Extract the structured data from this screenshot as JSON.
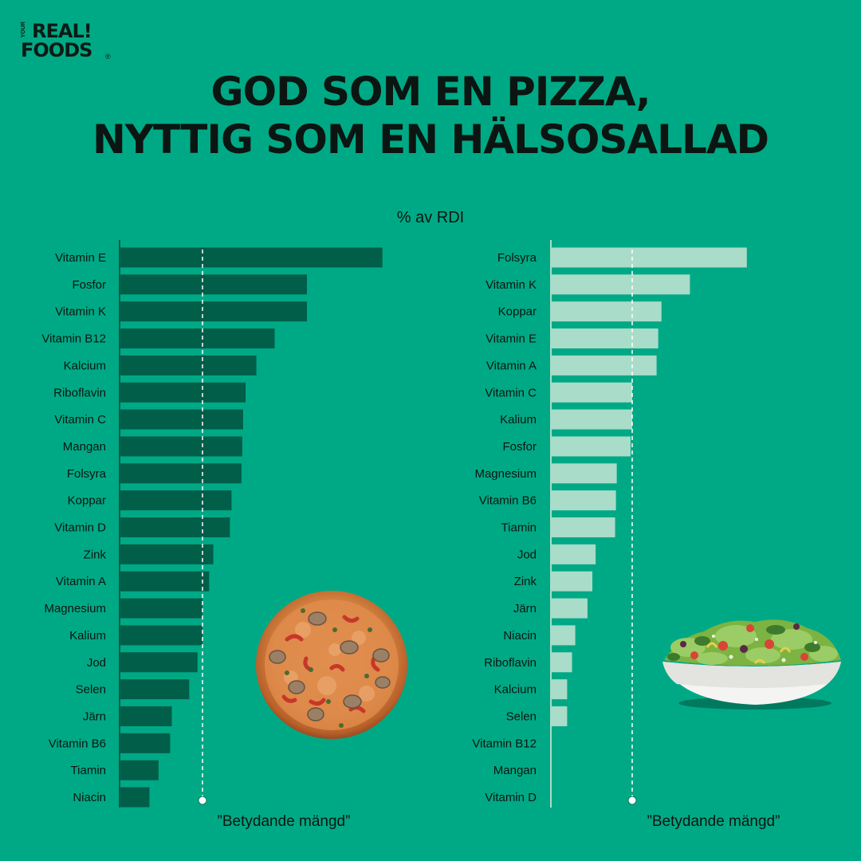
{
  "logo": {
    "line1": "REAL!",
    "line2": "FOODS",
    "mark": "YOUR",
    "registered": "®"
  },
  "headline": {
    "line1": "GOD SOM EN PIZZA,",
    "line2": "NYTTIG SOM EN HÄLSOSALLAD"
  },
  "colors": {
    "background": "#00a985",
    "pizza_bar": "#005e49",
    "salad_bar": "#a9dcc9",
    "text": "#0b1511",
    "reference_line": "#ffffff"
  },
  "chart_data": [
    {
      "type": "bar",
      "orientation": "horizontal",
      "ylabel": "% av RDI",
      "categories": [
        "Vitamin E",
        "Fosfor",
        "Vitamin K",
        "Vitamin B12",
        "Kalcium",
        "Riboflavin",
        "Vitamin C",
        "Mangan",
        "Folsyra",
        "Koppar",
        "Vitamin D",
        "Zink",
        "Vitamin A",
        "Magnesium",
        "Kalium",
        "Jod",
        "Selen",
        "Järn",
        "Vitamin B6",
        "Tiamin",
        "Niacin"
      ],
      "values": [
        317,
        226,
        226,
        187,
        165,
        152,
        149,
        148,
        147,
        135,
        133,
        113,
        108,
        100,
        100,
        94,
        84,
        63,
        61,
        47,
        36
      ],
      "reference_line": {
        "value": 100,
        "label": "”Betydande mängd”"
      },
      "bar_color": "#005e49",
      "icon": "pizza-image"
    },
    {
      "type": "bar",
      "orientation": "horizontal",
      "categories": [
        "Folsyra",
        "Vitamin K",
        "Koppar",
        "Vitamin E",
        "Vitamin A",
        "Vitamin C",
        "Kalium",
        "Fosfor",
        "Magnesium",
        "Vitamin B6",
        "Tiamin",
        "Jod",
        "Zink",
        "Järn",
        "Niacin",
        "Riboflavin",
        "Kalcium",
        "Selen",
        "Vitamin B12",
        "Mangan",
        "Vitamin D"
      ],
      "values": [
        241,
        171,
        136,
        132,
        130,
        100,
        100,
        98,
        81,
        80,
        79,
        55,
        51,
        45,
        30,
        26,
        20,
        20,
        0,
        0,
        0
      ],
      "reference_line": {
        "value": 100,
        "label": "”Betydande mängd”"
      },
      "bar_color": "#a9dcc9",
      "icon": "salad-image"
    }
  ]
}
